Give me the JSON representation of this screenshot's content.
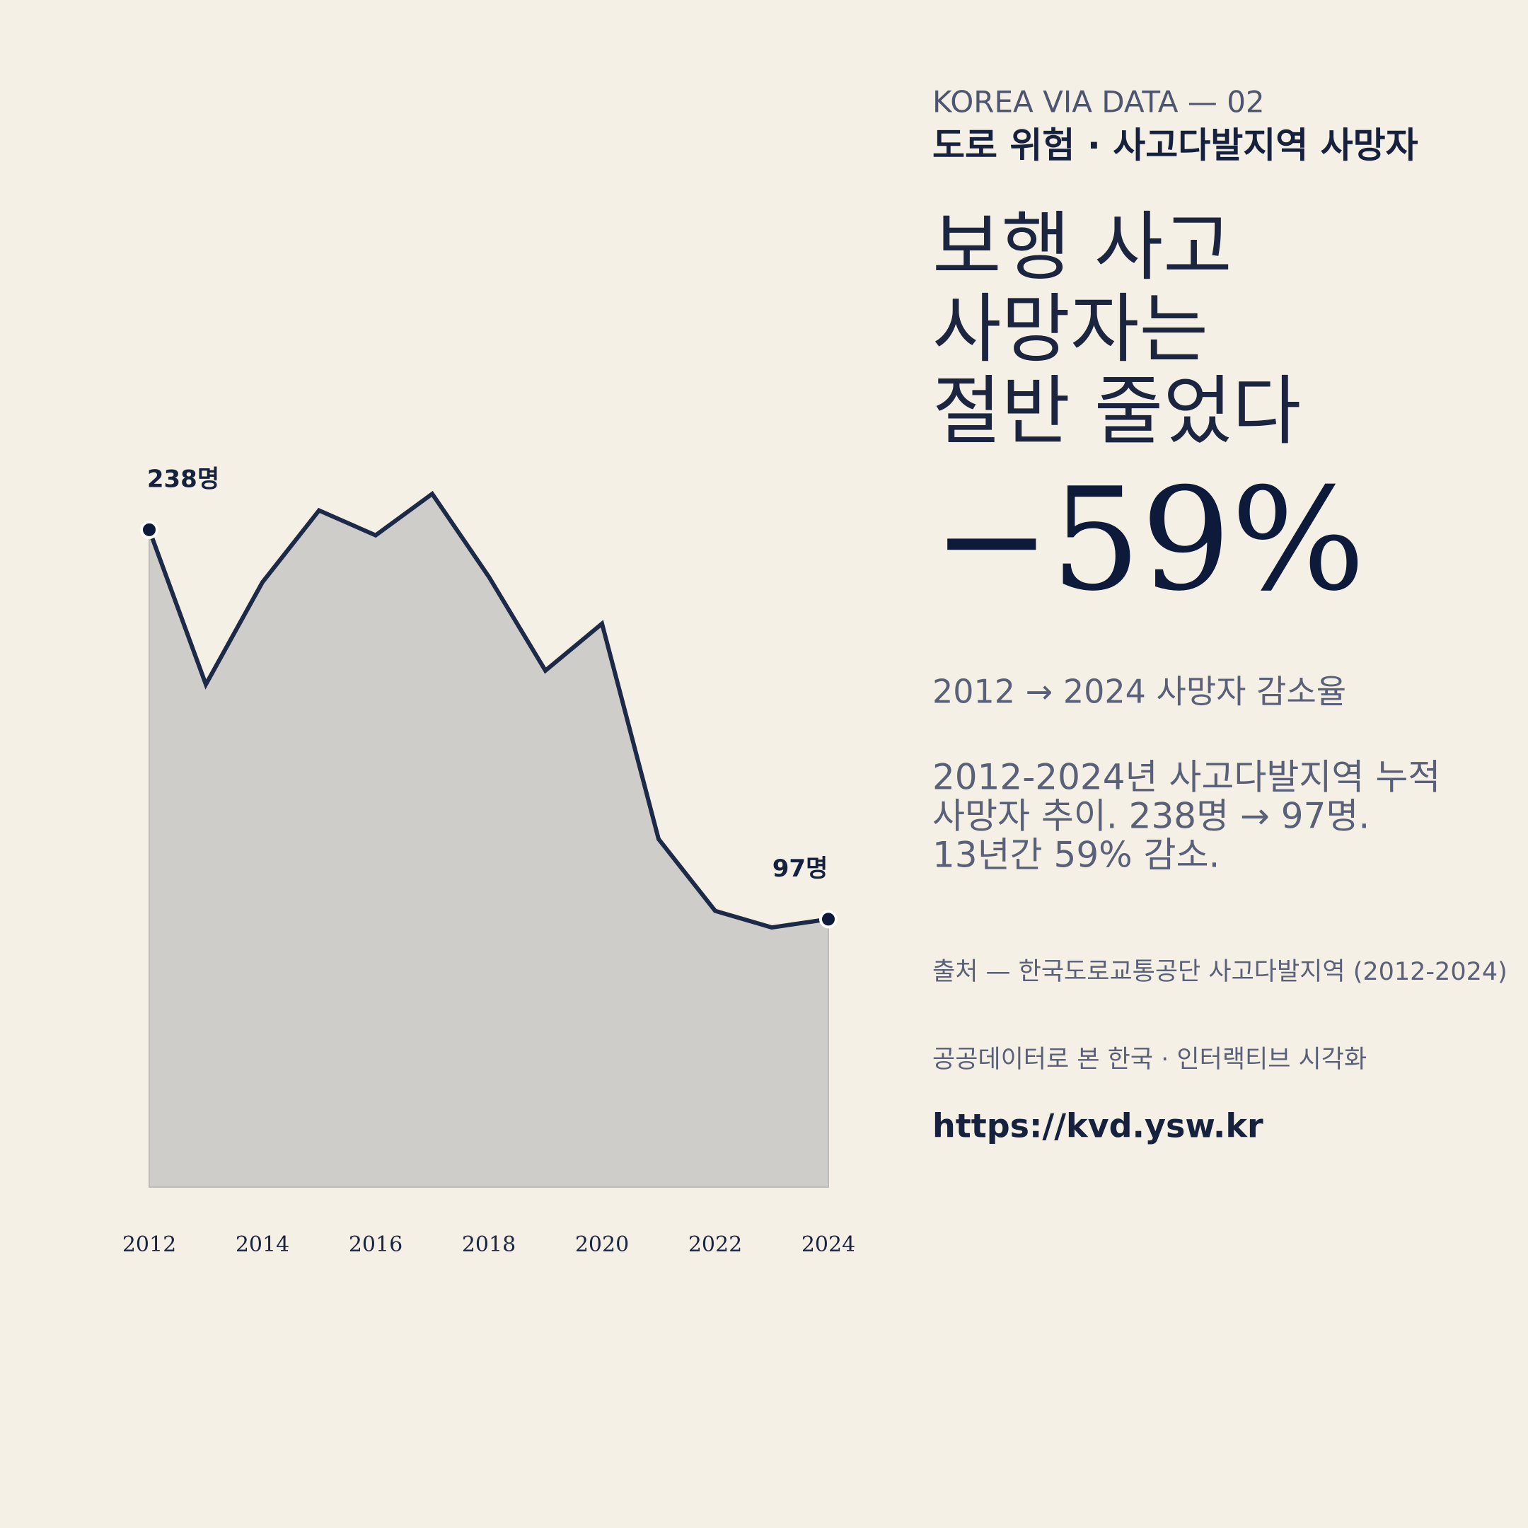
{
  "chart_data": {
    "type": "area",
    "x": [
      2012,
      2013,
      2014,
      2015,
      2016,
      2017,
      2018,
      2019,
      2020,
      2021,
      2022,
      2023,
      2024
    ],
    "values": [
      238,
      182,
      219,
      245,
      236,
      251,
      221,
      187,
      204,
      126,
      100,
      94,
      97
    ],
    "value_labels": [
      "238명",
      null,
      null,
      null,
      null,
      null,
      null,
      null,
      null,
      null,
      null,
      null,
      "97명"
    ],
    "xlim": [
      2012,
      2024
    ],
    "xticks": [
      2012,
      2014,
      2016,
      2018,
      2020,
      2022,
      2024
    ],
    "ylim": [
      0,
      260
    ],
    "color": "#1c2a48",
    "fill_color": "#cecdc9",
    "grid": false
  },
  "text": {
    "kicker": "KOREA VIA DATA — 02",
    "subtitle": "도로 위험 · 사고다발지역 사망자",
    "headline": [
      "보행 사고",
      "사망자는",
      "절반 줄었다"
    ],
    "big_stat": "−59%",
    "stat_caption": "2012 → 2024 사망자 감소율",
    "description": [
      "2012-2024년 사고다발지역 누적",
      "사망자 추이. 238명 → 97명.",
      "13년간 59% 감소."
    ],
    "source": "출처 — 한국도로교통공단 사고다발지역 (2012-2024)",
    "credit": "공공데이터로 본 한국 · 인터랙티브 시각화",
    "url": "https://kvd.ysw.kr"
  }
}
